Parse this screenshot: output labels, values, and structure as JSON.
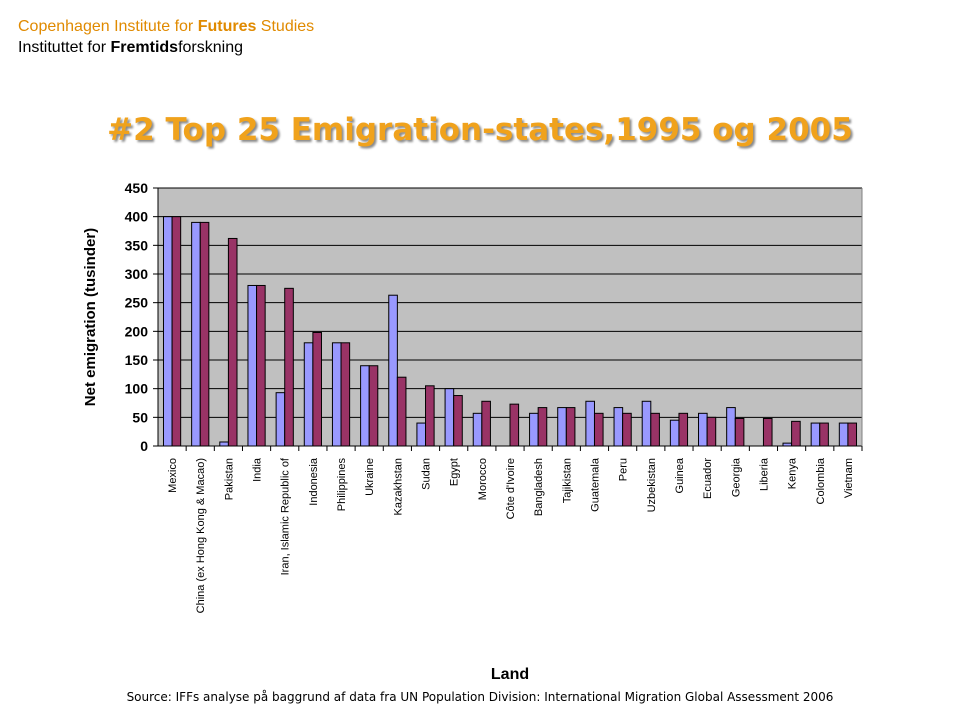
{
  "header": {
    "line1_pre": "Copenhagen Institute for ",
    "line1_bold": "Futures",
    "line1_post": " Studies",
    "line2_pre": "Instituttet for ",
    "line2_bold": "Fremtids",
    "line2_post": "forskning"
  },
  "title": "#2 Top 25 Emigration-states,1995 og 2005",
  "source": "Source: IFFs analyse på baggrund af data fra UN Population Division: International Migration Global Assessment 2006",
  "colors": {
    "series_1995": "#9999ff",
    "series_2005": "#993366",
    "plot_bg": "#c0c0c0",
    "header_accent": "#e08a00",
    "title": "#f0a21c"
  },
  "chart_data": {
    "type": "bar",
    "xlabel": "Land",
    "ylabel": "Net emigration (tusinder)",
    "ylim": [
      0,
      450
    ],
    "yticks": [
      0,
      50,
      100,
      150,
      200,
      250,
      300,
      350,
      400,
      450
    ],
    "grid": true,
    "legend": "none",
    "categories": [
      "Mexico",
      "China (ex Hong Kong & Macao)",
      "Pakistan",
      "India",
      "Iran, Islamic Republic of",
      "Indonesia",
      "Philippines",
      "Ukraine",
      "Kazakhstan",
      "Sudan",
      "Egypt",
      "Morocco",
      "Côte d'Ivoire",
      "Bangladesh",
      "Tajikistan",
      "Guatemala",
      "Peru",
      "Uzbekistan",
      "Guinea",
      "Ecuador",
      "Georgia",
      "Liberia",
      "Kenya",
      "Colombia",
      "Vietnam"
    ],
    "series": [
      {
        "values": [
          400,
          390,
          7,
          280,
          93,
          180,
          180,
          140,
          263,
          40,
          100,
          57,
          0,
          57,
          67,
          78,
          67,
          78,
          45,
          57,
          67,
          0,
          5,
          40,
          40
        ]
      },
      {
        "values": [
          400,
          390,
          362,
          280,
          275,
          198,
          180,
          140,
          120,
          105,
          88,
          78,
          73,
          67,
          67,
          57,
          57,
          57,
          57,
          50,
          48,
          48,
          43,
          40,
          40
        ]
      }
    ]
  }
}
